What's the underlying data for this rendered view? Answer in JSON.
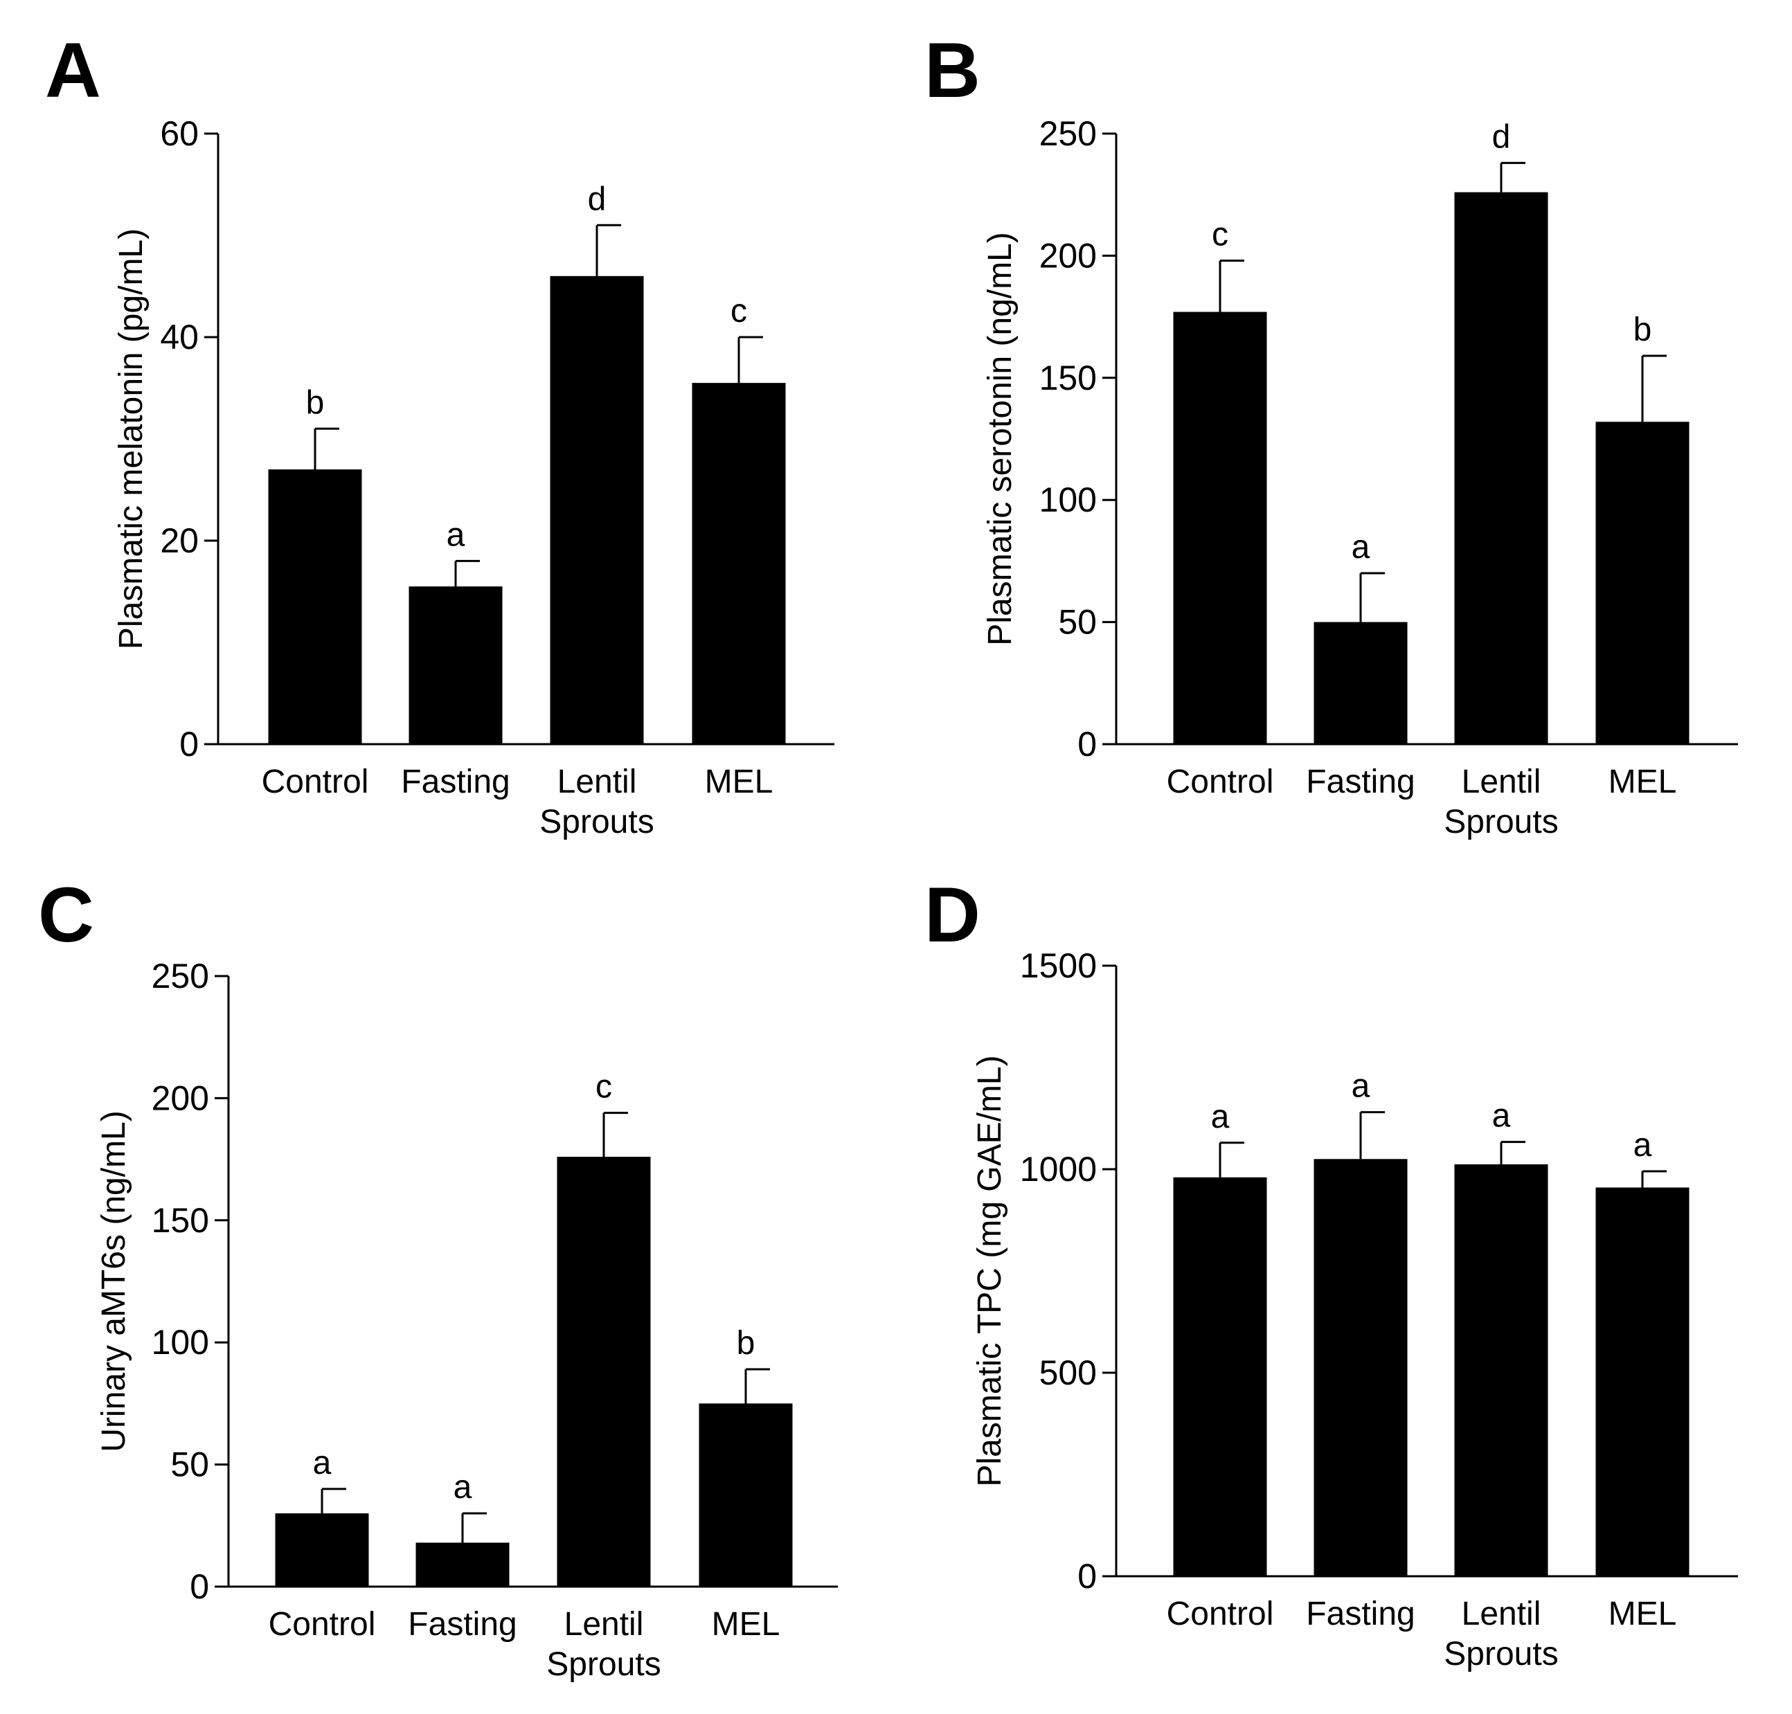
{
  "chart_data": [
    {
      "type": "bar",
      "panel_label": "A",
      "categories": [
        "Control",
        "Fasting",
        "Lentil\nSprouts",
        "MEL"
      ],
      "values": [
        27,
        15.5,
        46,
        35.5
      ],
      "errors": [
        4,
        2.5,
        5,
        4.5
      ],
      "significance": [
        "b",
        "a",
        "d",
        "c"
      ],
      "ylabel": "Plasmatic melatonin (pg/mL)",
      "ylim": [
        0,
        60
      ],
      "yticks": [
        0,
        20,
        40,
        60
      ],
      "bar_color": "#000000"
    },
    {
      "type": "bar",
      "panel_label": "B",
      "categories": [
        "Control",
        "Fasting",
        "Lentil\nSprouts",
        "MEL"
      ],
      "values": [
        177,
        50,
        226,
        132
      ],
      "errors": [
        21,
        20,
        12,
        27
      ],
      "significance": [
        "c",
        "a",
        "d",
        "b"
      ],
      "ylabel": "Plasmatic serotonin (ng/mL)",
      "ylim": [
        0,
        250
      ],
      "yticks": [
        0,
        50,
        100,
        150,
        200,
        250
      ],
      "bar_color": "#000000"
    },
    {
      "type": "bar",
      "panel_label": "C",
      "categories": [
        "Control",
        "Fasting",
        "Lentil\nSprouts",
        "MEL"
      ],
      "values": [
        30,
        18,
        176,
        75
      ],
      "errors": [
        10,
        12,
        18,
        14
      ],
      "significance": [
        "a",
        "a",
        "c",
        "b"
      ],
      "ylabel": "Urinary aMT6s (ng/mL)",
      "ylim": [
        0,
        250
      ],
      "yticks": [
        0,
        50,
        100,
        150,
        200,
        250
      ],
      "bar_color": "#000000"
    },
    {
      "type": "bar",
      "panel_label": "D",
      "categories": [
        "Control",
        "Fasting",
        "Lentil\nSprouts",
        "MEL"
      ],
      "values": [
        980,
        1025,
        1012,
        955
      ],
      "errors": [
        85,
        115,
        55,
        40
      ],
      "significance": [
        "a",
        "a",
        "a",
        "a"
      ],
      "ylabel": "Plasmatic TPC (mg GAE/mL)",
      "ylim": [
        0,
        1500
      ],
      "yticks": [
        0,
        500,
        1000,
        1500
      ],
      "bar_color": "#000000"
    }
  ]
}
